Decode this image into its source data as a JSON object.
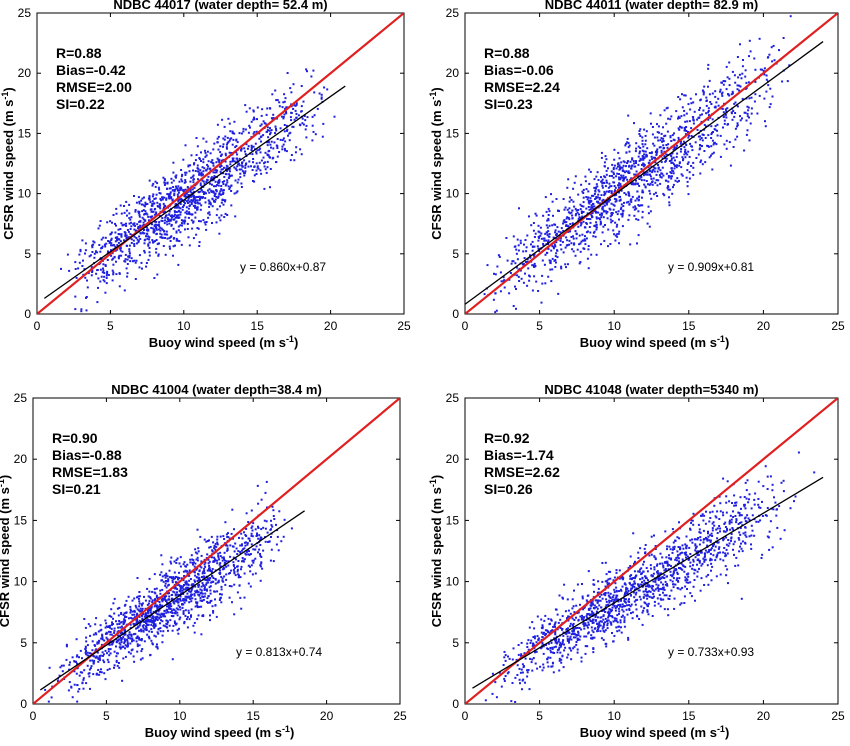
{
  "chart_data": [
    {
      "type": "scatter",
      "title": "NDBC 44017 (water depth= 52.4 m)",
      "xlabel": "Buoy wind speed (m s",
      "ylabel": "CFSR wind speed (m s",
      "unit_exponent": "-1",
      "ylabel_close": ")",
      "xlim": [
        0,
        25
      ],
      "ylim": [
        0,
        25
      ],
      "xticks": [
        "0",
        "5",
        "10",
        "15",
        "20",
        "25"
      ],
      "yticks": [
        "0",
        "5",
        "10",
        "15",
        "20",
        "25"
      ],
      "stats": [
        "R=0.88",
        "Bias=-0.42",
        "RMSE=2.00",
        "SI=0.22"
      ],
      "equation": "y = 0.860x+0.87",
      "fit": {
        "slope": 0.86,
        "intercept": 0.87,
        "x_range": [
          0.5,
          21
        ]
      },
      "identity_line": {
        "x_range": [
          0,
          25
        ]
      },
      "point_cloud": {
        "n": 1400,
        "x_range": [
          0.5,
          21
        ],
        "x_mode": 9.5,
        "scatter_sd": 1.9
      },
      "colors": {
        "points": "#1f1fe0",
        "fit": "#000000",
        "identity": "#e02020"
      }
    },
    {
      "type": "scatter",
      "title": "NDBC 44011 (water depth= 82.9 m)",
      "xlabel": "Buoy wind speed (m s",
      "ylabel": "CFSR wind speed (m s",
      "unit_exponent": "-1",
      "ylabel_close": ")",
      "xlim": [
        0,
        25
      ],
      "ylim": [
        0,
        25
      ],
      "xticks": [
        "0",
        "5",
        "10",
        "15",
        "20",
        "25"
      ],
      "yticks": [
        "0",
        "5",
        "10",
        "15",
        "20",
        "25"
      ],
      "stats": [
        "R=0.88",
        "Bias=-0.06",
        "RMSE=2.24",
        "SI=0.23"
      ],
      "equation": "y = 0.909x+0.81",
      "fit": {
        "slope": 0.909,
        "intercept": 0.81,
        "x_range": [
          0,
          24
        ]
      },
      "identity_line": {
        "x_range": [
          0,
          25
        ]
      },
      "point_cloud": {
        "n": 1400,
        "x_range": [
          0.3,
          23
        ],
        "x_mode": 9.5,
        "scatter_sd": 2.1
      },
      "colors": {
        "points": "#1f1fe0",
        "fit": "#000000",
        "identity": "#e02020"
      }
    },
    {
      "type": "scatter",
      "title": "NDBC 41004 (water depth=38.4 m)",
      "xlabel": "Buoy wind speed (m s",
      "ylabel": "CFSR wind speed (m s",
      "unit_exponent": "-1",
      "ylabel_close": ")",
      "xlim": [
        0,
        25
      ],
      "ylim": [
        0,
        25
      ],
      "xticks": [
        "0",
        "5",
        "10",
        "15",
        "20",
        "25"
      ],
      "yticks": [
        "0",
        "5",
        "10",
        "15",
        "20",
        "25"
      ],
      "stats": [
        "R=0.90",
        "Bias=-0.88",
        "RMSE=1.83",
        "SI=0.21"
      ],
      "equation": "y = 0.813x+0.74",
      "fit": {
        "slope": 0.813,
        "intercept": 0.74,
        "x_range": [
          0.5,
          18.5
        ]
      },
      "identity_line": {
        "x_range": [
          0,
          25
        ]
      },
      "point_cloud": {
        "n": 1400,
        "x_range": [
          0.3,
          18.5
        ],
        "x_mode": 8.5,
        "scatter_sd": 1.7
      },
      "colors": {
        "points": "#1f1fe0",
        "fit": "#000000",
        "identity": "#e02020"
      }
    },
    {
      "type": "scatter",
      "title": "NDBC 41048 (water depth=5340 m)",
      "xlabel": "Buoy wind speed (m s",
      "ylabel": "CFSR wind speed (m s",
      "unit_exponent": "-1",
      "ylabel_close": ")",
      "xlim": [
        0,
        25
      ],
      "ylim": [
        0,
        25
      ],
      "xticks": [
        "0",
        "5",
        "10",
        "15",
        "20",
        "25"
      ],
      "yticks": [
        "0",
        "5",
        "10",
        "15",
        "20",
        "25"
      ],
      "stats": [
        "R=0.92",
        "Bias=-1.74",
        "RMSE=2.62",
        "SI=0.26"
      ],
      "equation": "y = 0.733x+0.93",
      "fit": {
        "slope": 0.733,
        "intercept": 0.93,
        "x_range": [
          0.5,
          24
        ]
      },
      "identity_line": {
        "x_range": [
          0,
          25
        ]
      },
      "point_cloud": {
        "n": 1400,
        "x_range": [
          0.3,
          24
        ],
        "x_mode": 9,
        "scatter_sd": 1.7
      },
      "colors": {
        "points": "#1f1fe0",
        "fit": "#000000",
        "identity": "#e02020"
      }
    }
  ]
}
